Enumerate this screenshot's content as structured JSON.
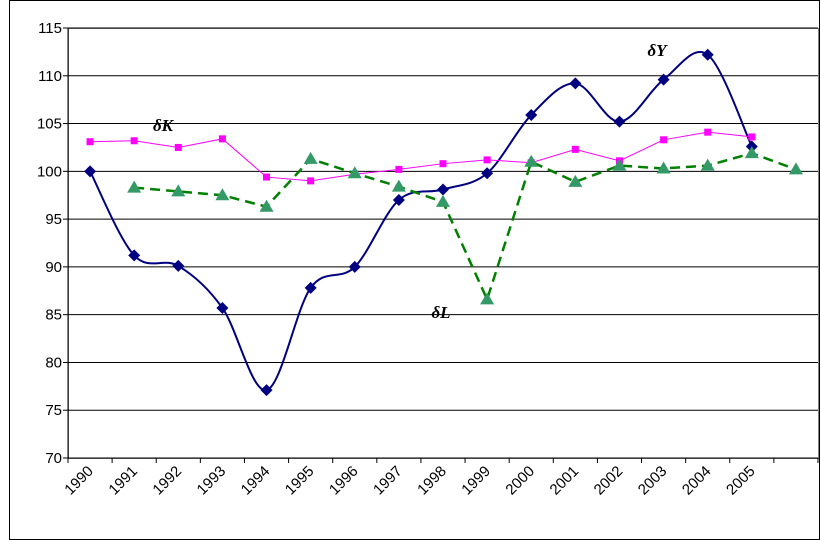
{
  "chart_data": {
    "type": "line",
    "categories": [
      "1990",
      "1991",
      "1992",
      "1993",
      "1994",
      "1995",
      "1996",
      "1997",
      "1998",
      "1999",
      "2000",
      "2001",
      "2002",
      "2003",
      "2004",
      "2005",
      null
    ],
    "series": [
      {
        "color": "#000080",
        "marker": "diamond",
        "smooth": true,
        "dash": false,
        "values": [
          100,
          91.2,
          90.1,
          85.7,
          77.1,
          87.8,
          90.0,
          97.0,
          98.1,
          99.8,
          105.9,
          109.2,
          105.2,
          109.6,
          112.2,
          102.6,
          null
        ]
      },
      {
        "color": "#ff00ff",
        "marker": "square",
        "smooth": false,
        "dash": false,
        "values": [
          103.1,
          103.2,
          102.5,
          103.4,
          99.4,
          99.0,
          99.7,
          100.2,
          100.8,
          101.2,
          100.9,
          102.3,
          101.1,
          103.3,
          104.1,
          103.6,
          null
        ]
      },
      {
        "color": "#008000",
        "marker_color": "#339966",
        "marker": "triangle",
        "smooth": false,
        "dash": true,
        "values": [
          null,
          98.3,
          97.9,
          97.5,
          96.3,
          101.3,
          99.8,
          98.4,
          96.8,
          86.6,
          101.0,
          98.9,
          100.6,
          100.3,
          100.6,
          101.9,
          100.2
        ]
      }
    ],
    "annotations": [
      {
        "text": "δY",
        "series": 0
      },
      {
        "text": "δK",
        "series": 1
      },
      {
        "text": "δL",
        "series": 2
      }
    ],
    "ylim": [
      70,
      115
    ],
    "yticks": [
      70,
      75,
      80,
      85,
      90,
      95,
      100,
      105,
      110,
      115
    ],
    "grid": true
  }
}
